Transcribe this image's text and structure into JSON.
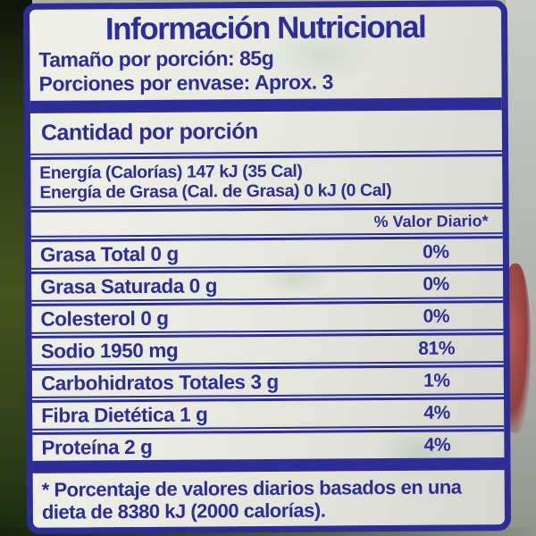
{
  "label": {
    "title": "Información Nutricional",
    "serving_size_label": "Tamaño por porción:",
    "serving_size_value": "85g",
    "servings_per_container_label": "Porciones por envase:",
    "servings_per_container_value": "Aprox. 3",
    "amount_per_serving": "Cantidad por porción",
    "energy_line1": "Energía (Calorías) 147 kJ (35 Cal)",
    "energy_line2": "Energía de Grasa (Cal. de Grasa)  0 kJ (0 Cal)",
    "daily_value_header": "% Valor Diario*",
    "nutrients": [
      {
        "name": "Grasa Total  0 g",
        "dv": "0%"
      },
      {
        "name": "Grasa Saturada 0 g",
        "dv": "0%"
      },
      {
        "name": "Colesterol 0 g",
        "dv": "0%"
      },
      {
        "name": "Sodio 1950 mg",
        "dv": "81%"
      },
      {
        "name": "Carbohidratos Totales  3 g",
        "dv": "1%"
      },
      {
        "name": "Fibra Dietética 1 g",
        "dv": "4%"
      },
      {
        "name": "Proteína  2 g",
        "dv": "4%"
      }
    ],
    "footnote_line1": "* Porcentaje de  valores diarios basados en una",
    "footnote_line2": "dieta de 8380 kJ (2000 calorías)."
  },
  "colors": {
    "navy": "#2d2e95",
    "label_bg": "#e9ebe3"
  }
}
